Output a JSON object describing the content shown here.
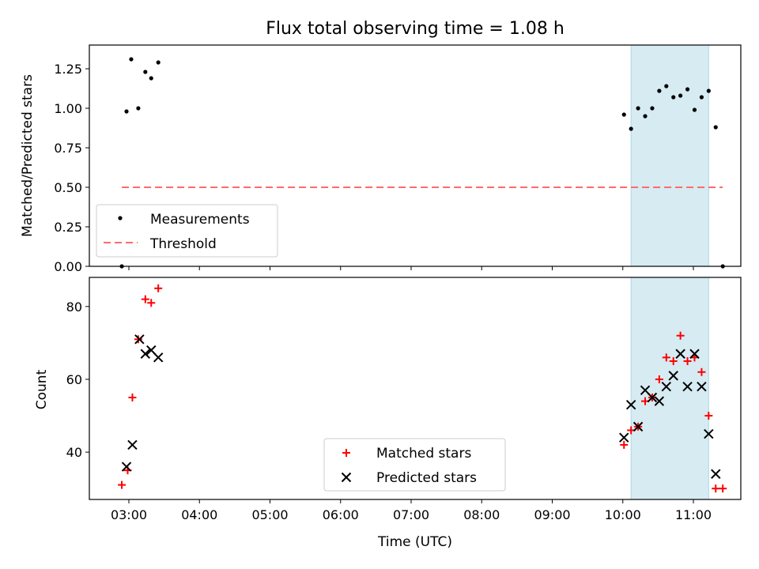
{
  "chart_data": [
    {
      "type": "scatter",
      "title": "Flux total observing time = 1.08 h",
      "xlabel": "",
      "ylabel": "Matched/Predicted stars",
      "ylim": [
        0,
        1.4
      ],
      "yticks": [
        "0.00",
        "0.25",
        "0.50",
        "0.75",
        "1.00",
        "1.25"
      ],
      "shaded_span": [
        "10:07",
        "11:13"
      ],
      "shade_color": "#add8e6",
      "legend": {
        "placement": "lower-left",
        "entries": [
          "Measurements",
          "Threshold"
        ]
      },
      "series": [
        {
          "name": "Measurements",
          "marker": "dot",
          "color": "#000000",
          "points": [
            [
              "02:54",
              0.0
            ],
            [
              "02:58",
              0.98
            ],
            [
              "03:02",
              1.31
            ],
            [
              "03:08",
              1.0
            ],
            [
              "03:14",
              1.23
            ],
            [
              "03:19",
              1.19
            ],
            [
              "03:25",
              1.29
            ],
            [
              "10:01",
              0.96
            ],
            [
              "10:07",
              0.87
            ],
            [
              "10:13",
              1.0
            ],
            [
              "10:19",
              0.95
            ],
            [
              "10:25",
              1.0
            ],
            [
              "10:31",
              1.11
            ],
            [
              "10:37",
              1.14
            ],
            [
              "10:43",
              1.07
            ],
            [
              "10:49",
              1.08
            ],
            [
              "10:55",
              1.12
            ],
            [
              "11:01",
              0.99
            ],
            [
              "11:07",
              1.07
            ],
            [
              "11:13",
              1.11
            ],
            [
              "11:19",
              0.88
            ],
            [
              "11:25",
              0.0
            ]
          ]
        },
        {
          "name": "Threshold",
          "style": "dashed-line",
          "color": "#ff6b6b",
          "points": [
            [
              "02:54",
              0.5
            ],
            [
              "11:25",
              0.5
            ]
          ]
        }
      ]
    },
    {
      "type": "scatter",
      "title": "",
      "xlabel": "Time (UTC)",
      "ylabel": "Count",
      "ylim": [
        27,
        88
      ],
      "yticks": [
        "40",
        "60",
        "80"
      ],
      "xticks": [
        "03:00",
        "04:00",
        "05:00",
        "06:00",
        "07:00",
        "08:00",
        "09:00",
        "10:00",
        "11:00"
      ],
      "shaded_span": [
        "10:07",
        "11:13"
      ],
      "shade_color": "#add8e6",
      "legend": {
        "placement": "lower-center",
        "entries": [
          "Matched stars",
          "Predicted stars"
        ]
      },
      "series": [
        {
          "name": "Matched stars",
          "marker": "plus",
          "color": "#ff0000",
          "points": [
            [
              "02:54",
              31
            ],
            [
              "02:59",
              35
            ],
            [
              "03:03",
              55
            ],
            [
              "03:08",
              71
            ],
            [
              "03:14",
              82
            ],
            [
              "03:19",
              81
            ],
            [
              "03:25",
              85
            ],
            [
              "10:01",
              42
            ],
            [
              "10:07",
              46
            ],
            [
              "10:13",
              47
            ],
            [
              "10:19",
              54
            ],
            [
              "10:25",
              55
            ],
            [
              "10:31",
              60
            ],
            [
              "10:37",
              66
            ],
            [
              "10:43",
              65
            ],
            [
              "10:49",
              72
            ],
            [
              "10:55",
              65
            ],
            [
              "11:01",
              66
            ],
            [
              "11:07",
              62
            ],
            [
              "11:13",
              50
            ],
            [
              "11:19",
              30
            ],
            [
              "11:25",
              30
            ]
          ]
        },
        {
          "name": "Predicted stars",
          "marker": "x",
          "color": "#000000",
          "points": [
            [
              "02:58",
              36
            ],
            [
              "03:03",
              42
            ],
            [
              "03:09",
              71
            ],
            [
              "03:14",
              67
            ],
            [
              "03:19",
              68
            ],
            [
              "03:25",
              66
            ],
            [
              "10:01",
              44
            ],
            [
              "10:07",
              53
            ],
            [
              "10:13",
              47
            ],
            [
              "10:19",
              57
            ],
            [
              "10:25",
              55
            ],
            [
              "10:31",
              54
            ],
            [
              "10:37",
              58
            ],
            [
              "10:43",
              61
            ],
            [
              "10:49",
              67
            ],
            [
              "10:55",
              58
            ],
            [
              "11:01",
              67
            ],
            [
              "11:07",
              58
            ],
            [
              "11:13",
              45
            ],
            [
              "11:19",
              34
            ]
          ]
        }
      ]
    }
  ]
}
